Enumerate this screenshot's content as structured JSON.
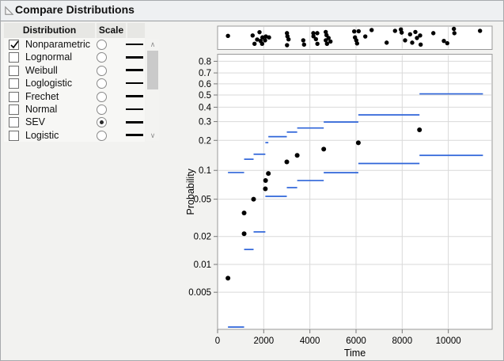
{
  "window_title": "Compare Distributions",
  "colors": {
    "ci_line": "#2e64d9",
    "point": "#000000",
    "grid": "#d9d9d9",
    "frame": "#999999",
    "plot_bg": "#ffffff"
  },
  "table": {
    "headers": [
      "Distribution",
      "Scale",
      ""
    ],
    "rows": [
      {
        "label": "Nonparametric",
        "checked": true,
        "scale_selected": false
      },
      {
        "label": "Lognormal",
        "checked": false,
        "scale_selected": false
      },
      {
        "label": "Weibull",
        "checked": false,
        "scale_selected": false
      },
      {
        "label": "Loglogistic",
        "checked": false,
        "scale_selected": false
      },
      {
        "label": "Frechet",
        "checked": false,
        "scale_selected": false
      },
      {
        "label": "Normal",
        "checked": false,
        "scale_selected": false
      },
      {
        "label": "SEV",
        "checked": false,
        "scale_selected": true
      },
      {
        "label": "Logistic",
        "checked": false,
        "scale_selected": false
      }
    ]
  },
  "chart_data": {
    "type": "scatter",
    "title": "",
    "xlabel": "Time",
    "ylabel": "Probability",
    "y_scale": "sev-probability",
    "x_ticks": [
      0,
      2000,
      4000,
      6000,
      8000,
      10000
    ],
    "x_tick_labels": [
      "0",
      "2000",
      "4000",
      "6000",
      "8000",
      "10000"
    ],
    "xlim": [
      0,
      11900
    ],
    "y_ticks": [
      0.8,
      0.7,
      0.6,
      0.5,
      0.4,
      0.3,
      0.2,
      0.1,
      0.05,
      0.02,
      0.01,
      0.005
    ],
    "y_tick_labels": [
      "0.8",
      "0.7",
      "0.6",
      "0.5",
      "0.4",
      "0.3",
      "0.2",
      "0.1",
      "0.05",
      "0.02",
      "0.01",
      "0.005"
    ],
    "ylim": [
      0.002,
      0.8546
    ],
    "grid": true,
    "event_plot_times": [
      [
        450,
        0.4
      ],
      [
        1519,
        0.38
      ],
      [
        1817,
        0.21
      ],
      [
        1715,
        0.59
      ],
      [
        1601,
        0.81
      ],
      [
        1862,
        0.66
      ],
      [
        1930,
        0.81
      ],
      [
        1944,
        0.48
      ],
      [
        2057,
        0.63
      ],
      [
        2092,
        0.43
      ],
      [
        2229,
        0.48
      ],
      [
        3007,
        0.26
      ],
      [
        3027,
        0.42
      ],
      [
        3075,
        0.58
      ],
      [
        3010,
        0.88
      ],
      [
        3713,
        0.63
      ],
      [
        3748,
        0.85
      ],
      [
        4149,
        0.26
      ],
      [
        4155,
        0.42
      ],
      [
        4320,
        0.26
      ],
      [
        4262,
        0.57
      ],
      [
        4325,
        0.81
      ],
      [
        4687,
        0.2
      ],
      [
        4721,
        0.36
      ],
      [
        4690,
        0.63
      ],
      [
        4742,
        0.81
      ],
      [
        4810,
        0.51
      ],
      [
        4893,
        0.69
      ],
      [
        5921,
        0.17
      ],
      [
        6113,
        0.16
      ],
      [
        5955,
        0.48
      ],
      [
        6010,
        0.63
      ],
      [
        6045,
        0.79
      ],
      [
        6401,
        0.43
      ],
      [
        6676,
        0.1
      ],
      [
        7327,
        0.75
      ],
      [
        7690,
        0.14
      ],
      [
        7944,
        0.07
      ],
      [
        7978,
        0.23
      ],
      [
        8126,
        0.63
      ],
      [
        8342,
        0.32
      ],
      [
        8434,
        0.75
      ],
      [
        8571,
        0.2
      ],
      [
        8640,
        0.51
      ],
      [
        8777,
        0.38
      ],
      [
        8801,
        0.85
      ],
      [
        9350,
        0.26
      ],
      [
        9806,
        0.66
      ],
      [
        9953,
        0.78
      ],
      [
        10241,
        0.04
      ],
      [
        10262,
        0.26
      ],
      [
        11373,
        0.14
      ]
    ],
    "points": [
      [
        450,
        0.0071
      ],
      [
        1150,
        0.0214
      ],
      [
        1150,
        0.0357
      ],
      [
        1560,
        0.05
      ],
      [
        2070,
        0.0643
      ],
      [
        2080,
        0.0786
      ],
      [
        2200,
        0.0929
      ],
      [
        3000,
        0.1221
      ],
      [
        3450,
        0.1422
      ],
      [
        4600,
        0.1642
      ],
      [
        6100,
        0.1895
      ],
      [
        8750,
        0.2517
      ]
    ],
    "upper_cl_segments": [
      [
        450,
        1150,
        0.095
      ],
      [
        1150,
        1560,
        0.13
      ],
      [
        1560,
        2070,
        0.146
      ],
      [
        2070,
        2200,
        0.19
      ],
      [
        2200,
        3000,
        0.217
      ],
      [
        3000,
        3450,
        0.24
      ],
      [
        3450,
        4600,
        0.262
      ],
      [
        4600,
        6100,
        0.2975
      ],
      [
        6100,
        8750,
        0.344
      ],
      [
        8750,
        11500,
        0.51
      ]
    ],
    "lower_cl_segments": [
      [
        450,
        1150,
        0.0021
      ],
      [
        1150,
        1560,
        0.0145
      ],
      [
        1560,
        2070,
        0.0224
      ],
      [
        2070,
        3000,
        0.0536
      ],
      [
        3000,
        3450,
        0.0662
      ],
      [
        3450,
        4600,
        0.0785
      ],
      [
        4600,
        6100,
        0.0947
      ],
      [
        6100,
        8750,
        0.1177
      ],
      [
        8750,
        11500,
        0.1422
      ]
    ]
  },
  "scrollbar": {
    "up_glyph": "∧",
    "down_glyph": "∨"
  }
}
